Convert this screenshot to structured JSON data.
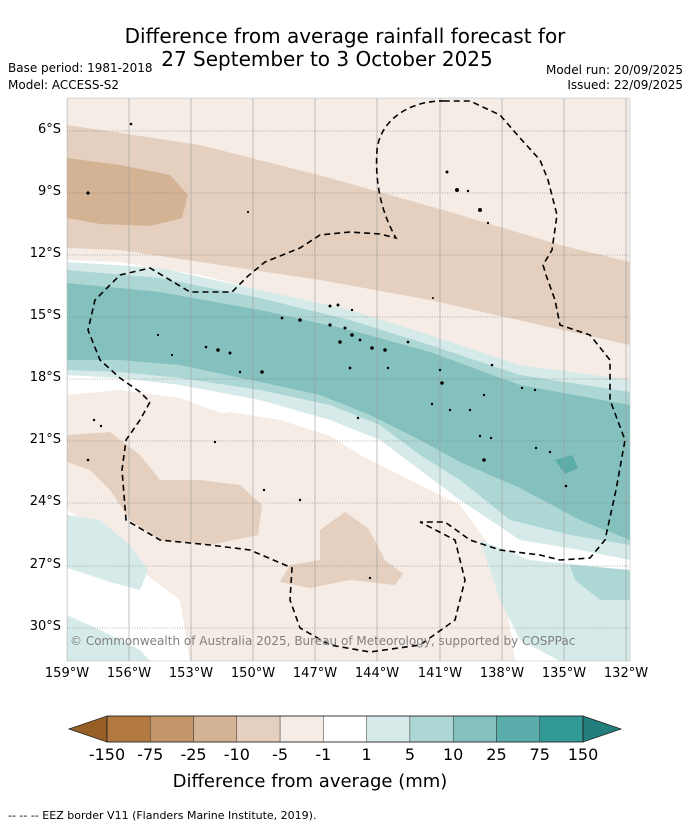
{
  "title": {
    "line1": "Difference from average rainfall forecast for",
    "line2": "27 September to 3 October 2025"
  },
  "meta": {
    "base_period": "Base period: 1981-2018",
    "model": "Model: ACCESS-S2",
    "model_run": "Model run: 20/09/2025",
    "issued": "Issued: 22/09/2025"
  },
  "map": {
    "lat_labels": [
      "6°S",
      "9°S",
      "12°S",
      "15°S",
      "18°S",
      "21°S",
      "24°S",
      "27°S",
      "30°S"
    ],
    "lon_labels": [
      "159°W",
      "156°W",
      "153°W",
      "150°W",
      "147°W",
      "144°W",
      "141°W",
      "138°W",
      "135°W",
      "132°W"
    ],
    "copyright": "© Commonwealth of Australia 2025, Bureau of Meteorology, supported by COSPPac"
  },
  "legend": {
    "title": "Difference from average (mm)",
    "tick_labels": [
      "-150",
      "-75",
      "-25",
      "-10",
      "-5",
      "-1",
      "1",
      "5",
      "10",
      "25",
      "75",
      "150"
    ],
    "colors": {
      "below_min": "#975f26",
      "bins": [
        "#b27941",
        "#c39669",
        "#d4b394",
        "#e5d0bf",
        "#f5ece6",
        "#ffffff",
        "#d6ebe9",
        "#add7d4",
        "#84c1be",
        "#5badab",
        "#329996"
      ],
      "above_max": "#237f7b"
    }
  },
  "footer": "-- -- -- EEZ border V11 (Flanders Marine Institute, 2019)."
}
